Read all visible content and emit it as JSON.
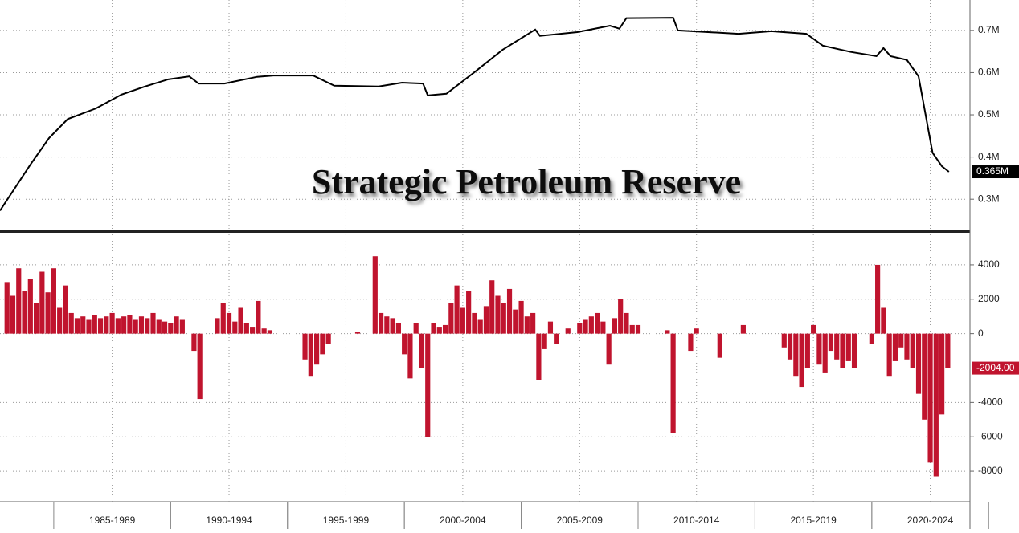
{
  "chart_data": [
    {
      "type": "line",
      "title": "Strategic Petroleum Reserve",
      "color": "#000000",
      "grid": true,
      "x": [
        1982.7,
        1984.0,
        1984.8,
        1985.6,
        1986.8,
        1987.9,
        1988.9,
        1989.9,
        1990.8,
        1991.2,
        1992.3,
        1993.7,
        1994.4,
        1996.1,
        1997.0,
        1998.9,
        1999.9,
        2000.8,
        2001.0,
        2001.8,
        2003.0,
        2004.2,
        2005.6,
        2005.8,
        2007.4,
        2008.8,
        2009.2,
        2009.5,
        2011.5,
        2011.7,
        2014.3,
        2015.7,
        2017.2,
        2017.9,
        2019.1,
        2020.2,
        2020.5,
        2020.8,
        2021.5,
        2022.0,
        2022.6,
        2023.0,
        2023.3
      ],
      "values": [
        0.273,
        0.382,
        0.445,
        0.49,
        0.515,
        0.548,
        0.567,
        0.584,
        0.591,
        0.574,
        0.574,
        0.59,
        0.593,
        0.593,
        0.569,
        0.567,
        0.576,
        0.574,
        0.546,
        0.55,
        0.601,
        0.654,
        0.702,
        0.687,
        0.696,
        0.711,
        0.704,
        0.729,
        0.73,
        0.7,
        0.692,
        0.698,
        0.692,
        0.664,
        0.649,
        0.639,
        0.658,
        0.639,
        0.63,
        0.591,
        0.41,
        0.378,
        0.365
      ],
      "last_value_label": "0.365M",
      "xlim": [
        1982.7,
        2024.2
      ],
      "ylim": [
        0.23,
        0.772
      ],
      "yticks": [
        {
          "value": 0.3,
          "label": "0.3M"
        },
        {
          "value": 0.4,
          "label": "0.4M"
        },
        {
          "value": 0.5,
          "label": "0.5M"
        },
        {
          "value": 0.6,
          "label": "0.6M"
        },
        {
          "value": 0.7,
          "label": "0.7M"
        }
      ]
    },
    {
      "type": "bar",
      "color": "#c0142e",
      "grid": true,
      "x": [
        1983,
        1983.25,
        1983.5,
        1983.75,
        1984,
        1984.25,
        1984.5,
        1984.75,
        1985,
        1985.25,
        1985.5,
        1985.75,
        1986,
        1986.25,
        1986.5,
        1986.75,
        1987,
        1987.25,
        1987.5,
        1987.75,
        1988,
        1988.25,
        1988.5,
        1988.75,
        1989,
        1989.25,
        1989.5,
        1989.75,
        1990,
        1990.25,
        1990.5,
        1990.75,
        1991,
        1991.25,
        1991.5,
        1991.75,
        1992,
        1992.25,
        1992.5,
        1992.75,
        1993,
        1993.25,
        1993.5,
        1993.75,
        1994,
        1994.25,
        1994.5,
        1994.75,
        1995,
        1995.25,
        1995.5,
        1995.75,
        1996,
        1996.25,
        1996.5,
        1996.75,
        1997,
        1997.25,
        1997.5,
        1997.75,
        1998,
        1998.25,
        1998.5,
        1998.75,
        1999,
        1999.25,
        1999.5,
        1999.75,
        2000,
        2000.25,
        2000.5,
        2000.75,
        2001,
        2001.25,
        2001.5,
        2001.75,
        2002,
        2002.25,
        2002.5,
        2002.75,
        2003,
        2003.25,
        2003.5,
        2003.75,
        2004,
        2004.25,
        2004.5,
        2004.75,
        2005,
        2005.25,
        2005.5,
        2005.75,
        2006,
        2006.25,
        2006.5,
        2006.75,
        2007,
        2007.25,
        2007.5,
        2007.75,
        2008,
        2008.25,
        2008.5,
        2008.75,
        2009,
        2009.25,
        2009.5,
        2009.75,
        2010,
        2010.25,
        2010.5,
        2010.75,
        2011,
        2011.25,
        2011.5,
        2011.75,
        2012,
        2012.25,
        2012.5,
        2012.75,
        2013,
        2013.25,
        2013.5,
        2013.75,
        2014,
        2014.25,
        2014.5,
        2014.75,
        2015,
        2015.25,
        2015.5,
        2015.75,
        2016,
        2016.25,
        2016.5,
        2016.75,
        2017,
        2017.25,
        2017.5,
        2017.75,
        2018,
        2018.25,
        2018.5,
        2018.75,
        2019,
        2019.25,
        2019.5,
        2019.75,
        2020,
        2020.25,
        2020.5,
        2020.75,
        2021,
        2021.25,
        2021.5,
        2021.75,
        2022,
        2022.25,
        2022.5,
        2022.75,
        2023,
        2023.25
      ],
      "values": [
        3000,
        2200,
        3800,
        2500,
        3200,
        1800,
        3600,
        2400,
        3800,
        1500,
        2800,
        1200,
        900,
        1000,
        800,
        1100,
        900,
        1000,
        1200,
        900,
        1000,
        1100,
        800,
        1000,
        900,
        1200,
        800,
        700,
        600,
        1000,
        800,
        0,
        -1000,
        -3800,
        0,
        0,
        900,
        1800,
        1200,
        700,
        1500,
        600,
        400,
        1900,
        300,
        200,
        0,
        0,
        0,
        0,
        0,
        -1500,
        -2500,
        -1800,
        -1200,
        -600,
        0,
        0,
        0,
        0,
        100,
        0,
        0,
        4500,
        1200,
        1000,
        900,
        600,
        -1200,
        -2600,
        600,
        -2000,
        -6000,
        600,
        400,
        500,
        1800,
        2800,
        1500,
        2500,
        1200,
        800,
        1600,
        3100,
        2200,
        1800,
        2600,
        1400,
        1900,
        1000,
        1200,
        -2700,
        -900,
        700,
        -600,
        0,
        300,
        0,
        600,
        800,
        1000,
        1200,
        700,
        -1800,
        900,
        2000,
        1200,
        500,
        500,
        0,
        0,
        0,
        0,
        200,
        -5800,
        0,
        0,
        -1000,
        300,
        0,
        0,
        0,
        -1400,
        0,
        0,
        0,
        500,
        0,
        0,
        0,
        0,
        0,
        0,
        -800,
        -1500,
        -2500,
        -3100,
        -2000,
        500,
        -1800,
        -2300,
        -1000,
        -1500,
        -2000,
        -1600,
        -2000,
        0,
        0,
        -600,
        4000,
        1500,
        -2500,
        -1600,
        -800,
        -1500,
        -2000,
        -3500,
        -5000,
        -7500,
        -8300,
        -4700,
        -2004
      ],
      "last_value_label": "-2004.00",
      "xlim": [
        1982.7,
        2024.2
      ],
      "ylim": [
        -9770,
        5770
      ],
      "yticks": [
        -8000,
        -6000,
        -4000,
        -2000,
        0,
        2000,
        4000
      ],
      "xticks": [
        {
          "value": 1987.5,
          "label": "1985-1989"
        },
        {
          "value": 1992.5,
          "label": "1990-1994"
        },
        {
          "value": 1997.5,
          "label": "1995-1999"
        },
        {
          "value": 2002.5,
          "label": "2000-2004"
        },
        {
          "value": 2007.5,
          "label": "2005-2009"
        },
        {
          "value": 2012.5,
          "label": "2010-2014"
        },
        {
          "value": 2017.5,
          "label": "2015-2019"
        },
        {
          "value": 2022.5,
          "label": "2020-2024"
        }
      ]
    }
  ]
}
